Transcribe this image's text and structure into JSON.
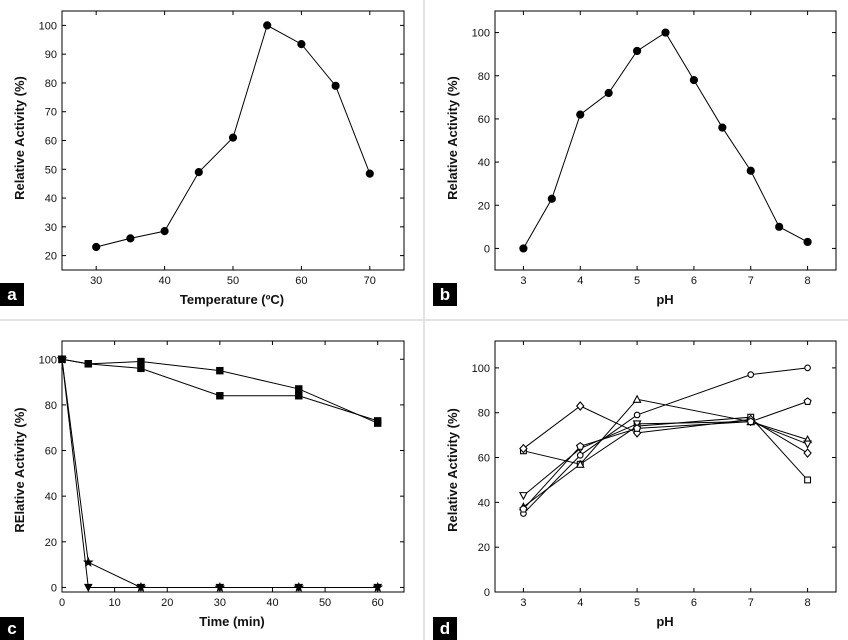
{
  "figure": {
    "panels": [
      "a",
      "b",
      "c",
      "d"
    ]
  },
  "chart_data": [
    {
      "panel": "a",
      "type": "line",
      "xlabel": "Temperature (ºC)",
      "ylabel": "Relative Activity (%)",
      "xlim": [
        25,
        75
      ],
      "ylim": [
        15,
        105
      ],
      "xticks": [
        30,
        40,
        50,
        60,
        70
      ],
      "yticks": [
        20,
        30,
        40,
        50,
        60,
        70,
        80,
        90,
        100
      ],
      "grid": false,
      "series": [
        {
          "marker": "circle-filled",
          "x": [
            30,
            35,
            40,
            45,
            50,
            55,
            60,
            65,
            70
          ],
          "y": [
            23,
            26,
            28.5,
            49,
            61,
            100,
            93.5,
            79,
            48.5
          ]
        }
      ]
    },
    {
      "panel": "b",
      "type": "line",
      "xlabel": "pH",
      "ylabel": "Relative Activity (%)",
      "xlim": [
        2.5,
        8.5
      ],
      "ylim": [
        -10,
        110
      ],
      "xticks": [
        3,
        4,
        5,
        6,
        7,
        8
      ],
      "yticks": [
        0,
        20,
        40,
        60,
        80,
        100
      ],
      "grid": false,
      "series": [
        {
          "marker": "circle-filled",
          "x": [
            3,
            3.5,
            4,
            4.5,
            5,
            5.5,
            6,
            6.5,
            7,
            7.5,
            8
          ],
          "y": [
            0,
            23,
            62,
            72,
            91.5,
            100,
            78,
            56,
            36,
            10,
            3
          ]
        }
      ]
    },
    {
      "panel": "c",
      "type": "line",
      "xlabel": "Time (min)",
      "ylabel": "RElative Activity (%)",
      "xlim": [
        0,
        65
      ],
      "ylim": [
        -2,
        108
      ],
      "xticks": [
        0,
        10,
        20,
        30,
        40,
        50,
        60
      ],
      "yticks": [
        0,
        20,
        40,
        60,
        80,
        100
      ],
      "grid": false,
      "series": [
        {
          "marker": "square-filled",
          "x": [
            0,
            5,
            15,
            30,
            45,
            60
          ],
          "y": [
            100,
            98,
            99,
            95,
            87,
            72
          ]
        },
        {
          "marker": "square-filled",
          "x": [
            0,
            5,
            15,
            30,
            45,
            60
          ],
          "y": [
            100,
            98,
            96,
            84,
            84,
            73
          ]
        },
        {
          "marker": "triangle-down-filled",
          "x": [
            0,
            5,
            15,
            30,
            45,
            60
          ],
          "y": [
            100,
            0,
            0,
            0,
            0,
            0
          ]
        },
        {
          "marker": "star-filled",
          "x": [
            0,
            5,
            15,
            30,
            45,
            60
          ],
          "y": [
            100,
            11,
            0,
            0,
            0,
            0
          ]
        }
      ]
    },
    {
      "panel": "d",
      "type": "line",
      "xlabel": "pH",
      "ylabel": "Relative Activity (%)",
      "xlim": [
        2.5,
        8.5
      ],
      "ylim": [
        0,
        112
      ],
      "xticks": [
        3,
        4,
        5,
        6,
        7,
        8
      ],
      "yticks": [
        0,
        20,
        40,
        60,
        80,
        100
      ],
      "grid": false,
      "series": [
        {
          "marker": "circle-open",
          "x": [
            3,
            4,
            5,
            7,
            8
          ],
          "y": [
            35,
            61,
            79,
            97,
            100
          ]
        },
        {
          "marker": "square-open",
          "x": [
            3,
            4,
            5,
            7,
            8
          ],
          "y": [
            63,
            57,
            74,
            78,
            50
          ]
        },
        {
          "marker": "triangle-up-open",
          "x": [
            3,
            4,
            5,
            7,
            8
          ],
          "y": [
            38,
            57,
            86,
            76,
            68
          ]
        },
        {
          "marker": "triangle-down-open",
          "x": [
            3,
            4,
            5,
            7,
            8
          ],
          "y": [
            43,
            64,
            75,
            76,
            66
          ]
        },
        {
          "marker": "diamond-open",
          "x": [
            3,
            4,
            5,
            7,
            8
          ],
          "y": [
            64,
            83,
            71,
            77,
            62
          ]
        },
        {
          "marker": "pentagon-open",
          "x": [
            3,
            4,
            5,
            7,
            8
          ],
          "y": [
            37,
            65,
            73,
            76,
            85
          ]
        }
      ]
    }
  ]
}
